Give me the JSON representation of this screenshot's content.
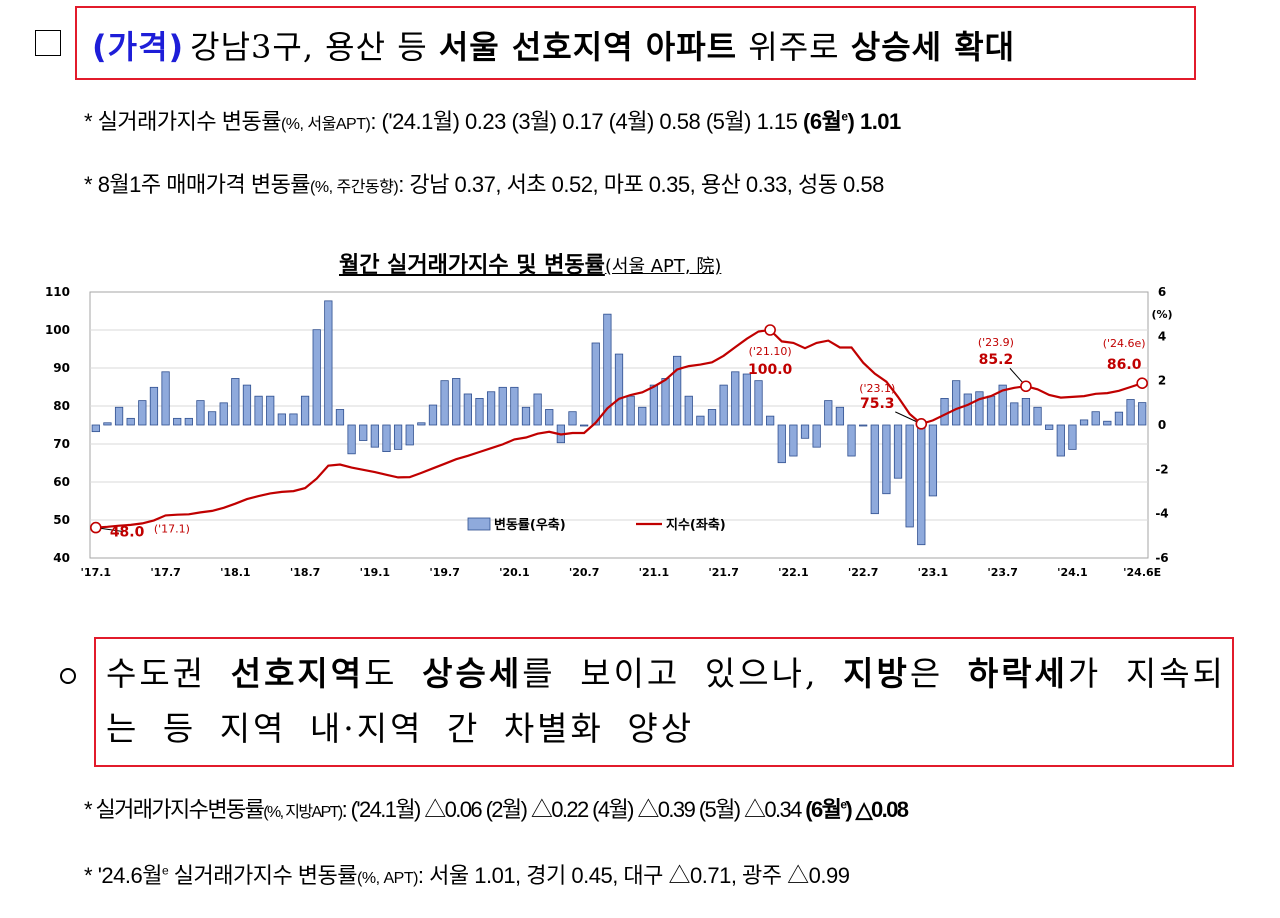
{
  "headline": {
    "tag": "(가격)",
    "text_a": "강남3구, 용산 등 ",
    "text_b": "서울 선호지역 아파트",
    "text_c": " 위주로 ",
    "text_d": "상승세 확대"
  },
  "note1": {
    "star": "* ",
    "label": "실거래가지수 변동률",
    "unit": "(%, 서울APT)",
    "body": ": ('24.1월) 0.23 (3월) 0.17 (4월) 0.58 (5월) 1.15 ",
    "bold_pre": "(6월",
    "bold_sup": "e",
    "bold_post": ") 1.01"
  },
  "note2": {
    "star": "* ",
    "label": "8월1주 매매가격 변동률",
    "unit": "(%, 주간동향)",
    "body": ": 강남 0.37, 서초 0.52, 마포 0.35, 용산 0.33, 성동 0.58"
  },
  "chart_title": {
    "main": "월간 실거래가지수 및 변동률",
    "sub": "(서울 APT, 院)"
  },
  "chart_data": {
    "type": "bar+line",
    "x_tick_labels": [
      "'17.1",
      "'17.7",
      "'18.1",
      "'18.7",
      "'19.1",
      "'19.7",
      "'20.1",
      "'20.7",
      "'21.1",
      "'21.7",
      "'22.1",
      "'22.7",
      "'23.1",
      "'23.7",
      "'24.1",
      "'24.6E"
    ],
    "left_axis": {
      "min": 40,
      "max": 110,
      "ticks": [
        40,
        50,
        60,
        70,
        80,
        90,
        100,
        110
      ]
    },
    "right_axis": {
      "min": -6,
      "max": 6,
      "ticks": [
        -6,
        -4,
        -2,
        0,
        2,
        4,
        6
      ],
      "unit": "(%)"
    },
    "series": [
      {
        "name": "변동률(우축)",
        "type": "bar",
        "axis": "right",
        "color": "#8faadc",
        "values": [
          -0.3,
          0.1,
          0.8,
          0.3,
          1.1,
          1.7,
          2.4,
          0.3,
          0.3,
          1.1,
          0.6,
          1.0,
          2.1,
          1.8,
          1.3,
          1.3,
          0.5,
          0.5,
          1.3,
          4.3,
          5.6,
          0.7,
          -1.3,
          -0.7,
          -1.0,
          -1.2,
          -1.1,
          -0.9,
          0.1,
          0.9,
          2.0,
          2.1,
          1.4,
          1.2,
          1.5,
          1.7,
          1.7,
          0.8,
          1.4,
          0.7,
          -0.8,
          0.6,
          0.0,
          3.7,
          5.0,
          3.2,
          1.3,
          0.8,
          1.8,
          2.1,
          3.1,
          1.3,
          0.4,
          0.7,
          1.8,
          2.4,
          2.3,
          2.0,
          0.4,
          -1.7,
          -1.4,
          -0.6,
          -1.0,
          1.1,
          0.8,
          -1.4,
          0.0,
          -4.0,
          -3.1,
          -2.4,
          -4.6,
          -5.4,
          -3.2,
          1.2,
          2.0,
          1.4,
          1.5,
          1.3,
          1.8,
          1.0,
          1.2,
          0.8,
          -0.2,
          -1.4,
          -1.1,
          0.23,
          0.6,
          0.17,
          0.58,
          1.15,
          1.01
        ]
      },
      {
        "name": "지수(좌축)",
        "type": "line",
        "axis": "left",
        "color": "#c00000",
        "values": [
          48.0,
          48.2,
          48.5,
          48.7,
          49.1,
          49.9,
          51.2,
          51.4,
          51.5,
          52.0,
          52.4,
          53.2,
          54.3,
          55.5,
          56.3,
          57.0,
          57.4,
          57.6,
          58.4,
          60.9,
          64.3,
          64.6,
          63.8,
          63.2,
          62.6,
          61.9,
          61.2,
          61.3,
          62.4,
          63.6,
          64.8,
          66.0,
          66.9,
          67.9,
          68.9,
          69.9,
          71.2,
          71.7,
          72.7,
          73.2,
          72.5,
          72.9,
          72.9,
          75.6,
          79.4,
          81.9,
          82.9,
          83.6,
          85.1,
          86.9,
          89.6,
          90.5,
          90.9,
          91.5,
          93.2,
          95.5,
          97.7,
          99.6,
          100.0,
          97.0,
          96.6,
          95.2,
          96.6,
          97.2,
          95.4,
          95.4,
          91.4,
          88.5,
          86.4,
          82.4,
          77.9,
          75.3,
          76.2,
          77.7,
          79.2,
          80.3,
          81.8,
          82.6,
          84.1,
          84.8,
          85.2,
          84.4,
          82.9,
          82.2,
          82.4,
          82.6,
          83.2,
          83.4,
          84.0,
          85.0,
          86.0
        ]
      }
    ],
    "annotations": [
      {
        "index": 0,
        "value": "48.0",
        "period": "('17.1)"
      },
      {
        "index": 58,
        "value": "100.0",
        "period": "('21.10)"
      },
      {
        "index": 71,
        "value": "75.3",
        "period": "('23.1)"
      },
      {
        "index": 80,
        "value": "85.2",
        "period": "('23.9)"
      },
      {
        "index": 90,
        "value": "86.0",
        "period": "('24.6e)"
      }
    ],
    "legend_placement": "bottom-center"
  },
  "bullet_para": {
    "p1": "수도권 ",
    "p2": "선호지역",
    "p3": "도 ",
    "p4": "상승세",
    "p5": "를 보이고 있으나, ",
    "p6": "지방",
    "p7": "은 ",
    "p8": "하락세",
    "p9": "가 지속되는 등 지역 내·지역 간 차별화 양상"
  },
  "note3": {
    "star": "* ",
    "label": "실거래가지수변동률",
    "unit": "(%, 지방APT)",
    "body": ": ('24.1월) △0.06 (2월) △0.22 (4월) △0.39 (5월) △0.34 ",
    "bold_pre": "(6월",
    "bold_sup": "e",
    "bold_post": ") △0.08"
  },
  "note4": {
    "star": "* ",
    "pre": "'24.6월",
    "sup": "e",
    "label": " 실거래가지수 변동률",
    "unit": "(%, APT)",
    "body": ": 서울 1.01, 경기 0.45, 대구 △0.71, 광주 △0.99"
  }
}
